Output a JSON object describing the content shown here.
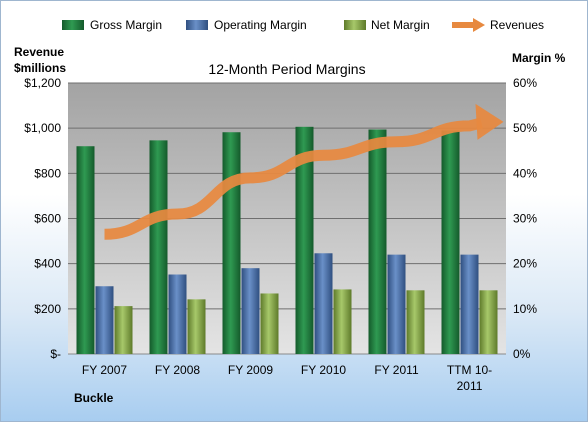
{
  "chart_data": {
    "type": "bar",
    "title": "12-Month Period Margins",
    "company": "Buckle",
    "y_left_label": [
      "Revenue",
      "$millions"
    ],
    "y_right_label": "Margin %",
    "y_left_ticks": [
      "$-",
      "$200",
      "$400",
      "$600",
      "$800",
      "$1,000",
      "$1,200"
    ],
    "y_right_ticks": [
      "0%",
      "10%",
      "20%",
      "30%",
      "40%",
      "50%",
      "60%"
    ],
    "y_left_range": [
      0,
      1200
    ],
    "y_right_range": [
      0,
      60
    ],
    "categories": [
      "FY 2007",
      "FY 2008",
      "FY 2009",
      "FY 2010",
      "FY 2011",
      "TTM 10-2011"
    ],
    "category_lines": [
      [
        "FY 2007"
      ],
      [
        "FY 2008"
      ],
      [
        "FY 2009"
      ],
      [
        "FY 2010"
      ],
      [
        "FY 2011"
      ],
      [
        "TTM 10-",
        "2011"
      ]
    ],
    "series": [
      {
        "name": "Gross Margin",
        "axis": "right",
        "type": "bar",
        "color": "#217a3e",
        "values": [
          46.0,
          47.3,
          49.1,
          50.3,
          49.7,
          49.5
        ]
      },
      {
        "name": "Operating Margin",
        "axis": "right",
        "type": "bar",
        "color": "#4670a8",
        "values": [
          15.0,
          17.6,
          19.0,
          22.3,
          22.0,
          22.0
        ]
      },
      {
        "name": "Net Margin",
        "axis": "right",
        "type": "bar",
        "color": "#8cab4f",
        "values": [
          10.6,
          12.1,
          13.4,
          14.3,
          14.1,
          14.1
        ]
      },
      {
        "name": "Revenues",
        "axis": "left",
        "type": "line",
        "color": "#e7893f",
        "values": [
          530,
          620,
          780,
          880,
          940,
          1010
        ]
      }
    ],
    "grid": true,
    "legend": "top"
  }
}
